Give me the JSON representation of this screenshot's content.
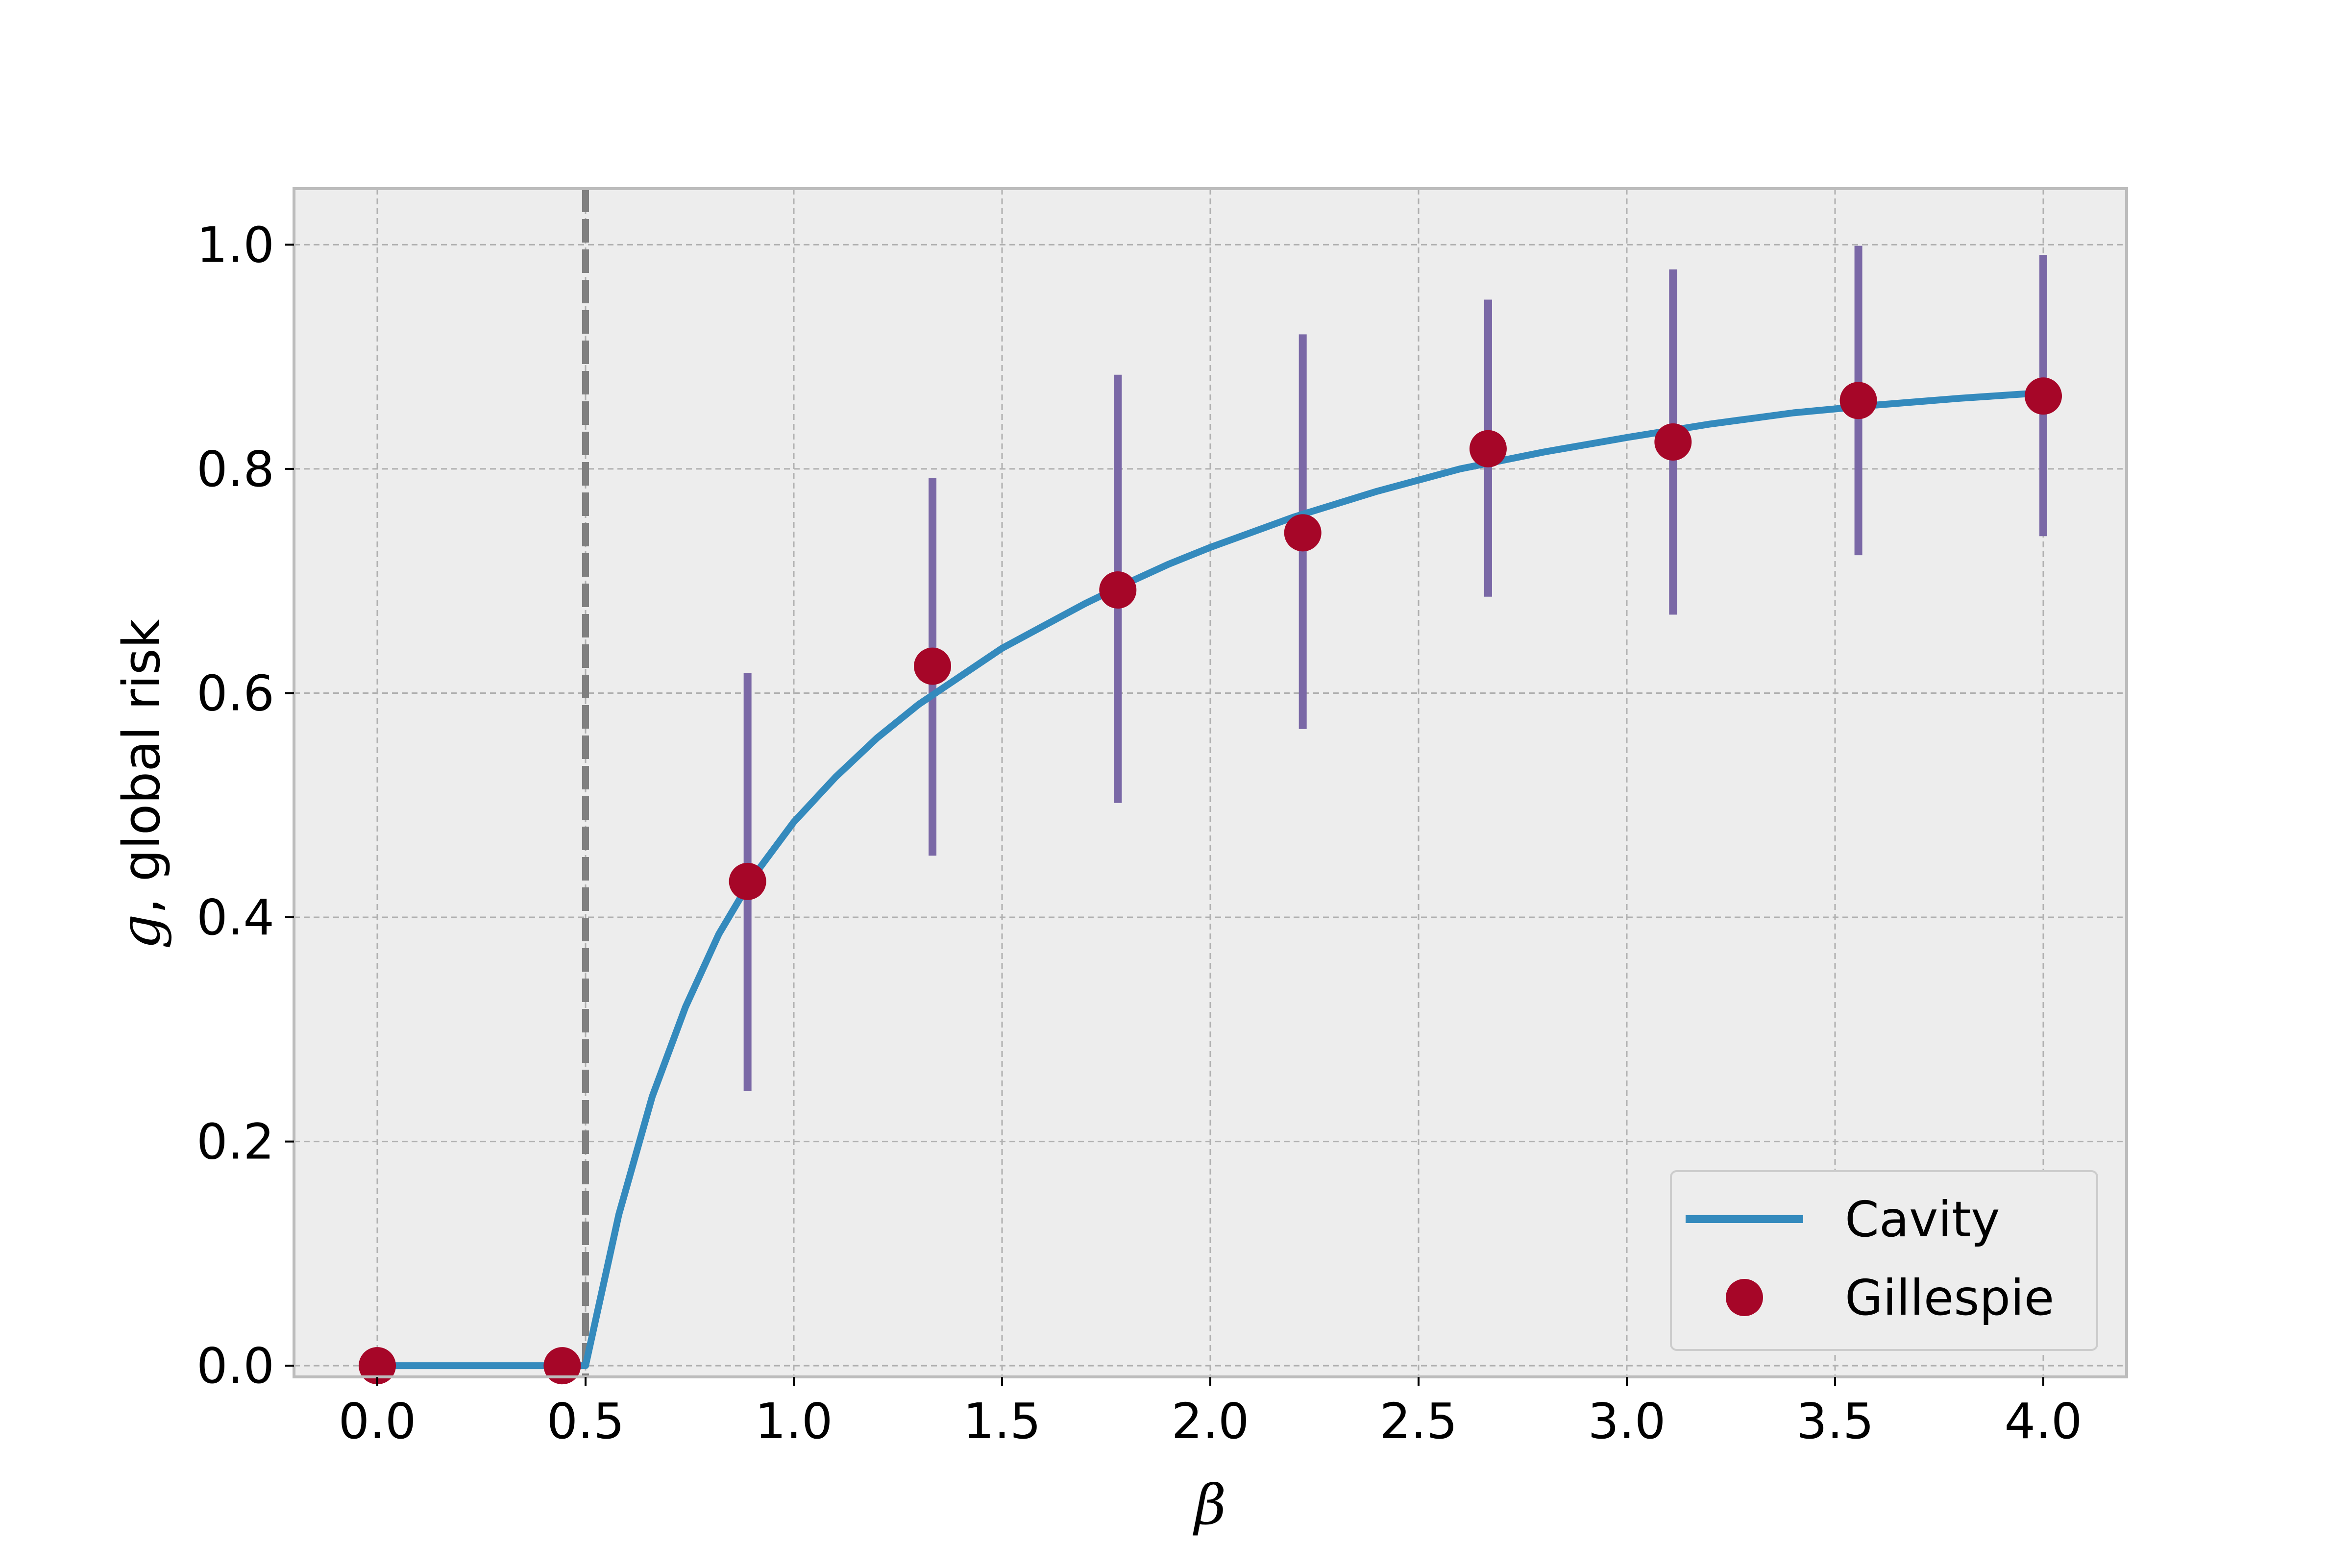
{
  "chart_data": {
    "type": "line",
    "xlabel": "β",
    "ylabel_var": "g",
    "ylabel_text": ", global risk",
    "xlim": [
      -0.2,
      4.2
    ],
    "ylim": [
      -0.01,
      1.05
    ],
    "xticks": [
      0.0,
      0.5,
      1.0,
      1.5,
      2.0,
      2.5,
      3.0,
      3.5,
      4.0
    ],
    "xtick_labels": [
      "0.0",
      "0.5",
      "1.0",
      "1.5",
      "2.0",
      "2.5",
      "3.0",
      "3.5",
      "4.0"
    ],
    "yticks": [
      0.0,
      0.2,
      0.4,
      0.6,
      0.8,
      1.0
    ],
    "ytick_labels": [
      "0.0",
      "0.2",
      "0.4",
      "0.6",
      "0.8",
      "1.0"
    ],
    "grid": true,
    "legend_position": "lower-right",
    "threshold_x": 0.5,
    "colors": {
      "cavity": "#348ABD",
      "gillespie": "#A60628",
      "errorbar": "#7A68A6",
      "threshold": "#808080",
      "background": "#EDEDED",
      "grid": "#B0B0B0"
    },
    "series": [
      {
        "name": "Cavity",
        "kind": "line",
        "x": [
          0.0,
          0.1,
          0.2,
          0.3,
          0.4,
          0.5,
          0.58,
          0.66,
          0.74,
          0.82,
          0.9,
          1.0,
          1.1,
          1.2,
          1.3,
          1.4,
          1.5,
          1.6,
          1.7,
          1.8,
          1.9,
          2.0,
          2.2,
          2.4,
          2.6,
          2.8,
          3.0,
          3.2,
          3.4,
          3.6,
          3.8,
          4.0
        ],
        "y": [
          0.0,
          0.0,
          0.0,
          0.0,
          0.0,
          0.0,
          0.135,
          0.24,
          0.32,
          0.385,
          0.435,
          0.485,
          0.525,
          0.56,
          0.59,
          0.615,
          0.64,
          0.66,
          0.68,
          0.698,
          0.715,
          0.73,
          0.757,
          0.78,
          0.8,
          0.815,
          0.828,
          0.84,
          0.85,
          0.857,
          0.863,
          0.868
        ]
      },
      {
        "name": "Gillespie",
        "kind": "scatter",
        "x": [
          0.0,
          0.444,
          0.889,
          1.333,
          1.778,
          2.222,
          2.667,
          3.111,
          3.556,
          4.0
        ],
        "y": [
          0.0,
          0.0,
          0.432,
          0.624,
          0.692,
          0.743,
          0.818,
          0.824,
          0.861,
          0.865
        ],
        "err_low": [
          0.0,
          0.0,
          0.245,
          0.455,
          0.502,
          0.568,
          0.686,
          0.67,
          0.723,
          0.74
        ],
        "err_high": [
          0.0,
          0.0,
          0.618,
          0.792,
          0.884,
          0.92,
          0.951,
          0.978,
          0.999,
          0.991
        ]
      }
    ]
  }
}
